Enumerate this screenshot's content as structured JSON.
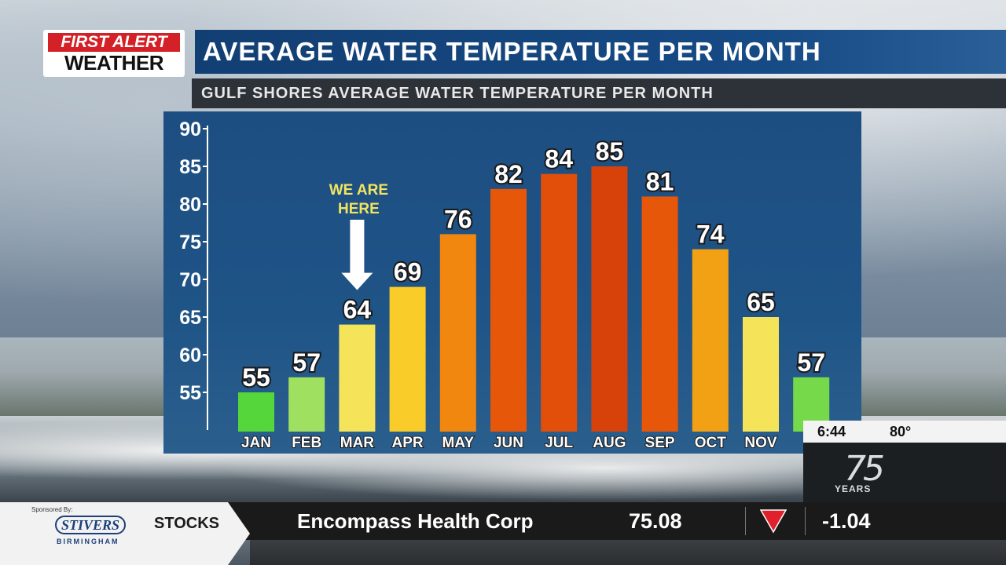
{
  "logo": {
    "line1": "FIRST ALERT",
    "line2": "WEATHER"
  },
  "header": {
    "title": "AVERAGE WATER TEMPERATURE PER MONTH",
    "subtitle": "GULF SHORES AVERAGE WATER TEMPERATURE PER MONTH"
  },
  "chart_data": {
    "type": "bar",
    "title": "AVERAGE WATER TEMPERATURE PER MONTH",
    "subtitle": "GULF SHORES AVERAGE WATER TEMPERATURE PER MONTH",
    "xlabel": "",
    "ylabel": "",
    "categories": [
      "JAN",
      "FEB",
      "MAR",
      "APR",
      "MAY",
      "JUN",
      "JUL",
      "AUG",
      "SEP",
      "OCT",
      "NOV",
      "DEC"
    ],
    "tick_labels_shown": [
      "JAN",
      "FEB",
      "MAR",
      "APR",
      "MAY",
      "JUN",
      "JUL",
      "AUG",
      "SEP",
      "OCT",
      "NOV",
      "D"
    ],
    "values": [
      55,
      57,
      64,
      69,
      76,
      82,
      84,
      85,
      81,
      74,
      65,
      57
    ],
    "colors": [
      "#55d63a",
      "#a0e060",
      "#f5e45a",
      "#f9cc2a",
      "#f1870f",
      "#e65709",
      "#e14f0a",
      "#d7420a",
      "#e65709",
      "#f3a114",
      "#f5e45a",
      "#76d94a"
    ],
    "ylim": [
      50,
      90
    ],
    "yticks": [
      55,
      60,
      65,
      70,
      75,
      80,
      85,
      90
    ],
    "grid": false,
    "legend": "none",
    "annotation": {
      "text_line1": "WE ARE",
      "text_line2": "HERE",
      "target": "MAR",
      "color": "#f3e55e"
    }
  },
  "clock": {
    "time": "6:44",
    "temp": "80°"
  },
  "anniversary": {
    "number": "75",
    "label": "YEARS"
  },
  "ticker": {
    "sponsored_by": "Sponsored By:",
    "sponsor_name": "STIVERS",
    "sponsor_city": "BIRMINGHAM",
    "section": "STOCKS",
    "company": "Encompass Health Corp",
    "price": "75.08",
    "change": "-1.04",
    "direction_icon": "down-triangle-icon",
    "down_color": "#e0202a"
  }
}
